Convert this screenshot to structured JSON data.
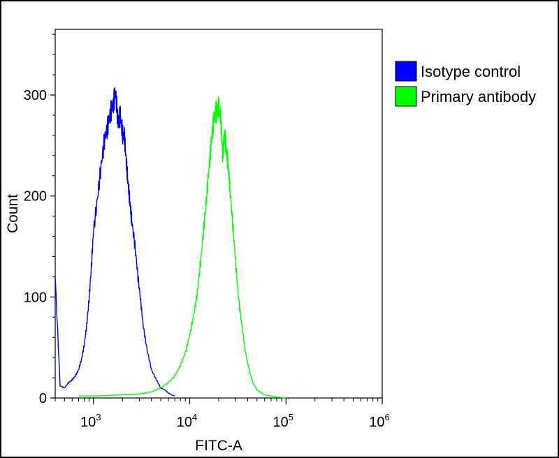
{
  "chart_data": {
    "type": "line",
    "title": "",
    "xlabel": "FITC-A",
    "ylabel": "Count",
    "x_scale": "log10",
    "xlim": [
      400,
      1000000
    ],
    "ylim": [
      0,
      365
    ],
    "x_ticks": [
      {
        "value": 1000,
        "base": "10",
        "exp": "3"
      },
      {
        "value": 10000,
        "base": "10",
        "exp": "4"
      },
      {
        "value": 100000,
        "base": "10",
        "exp": "5"
      },
      {
        "value": 1000000,
        "base": "10",
        "exp": "6"
      }
    ],
    "y_ticks": [
      {
        "value": 0,
        "label": "0"
      },
      {
        "value": 100,
        "label": "100"
      },
      {
        "value": 200,
        "label": "200"
      },
      {
        "value": 300,
        "label": "300"
      }
    ],
    "grid": false,
    "legend": "right",
    "series": [
      {
        "name": "Isotype control",
        "color": "#0000ff",
        "x": [
          400,
          450,
          500,
          550,
          600,
          650,
          700,
          750,
          800,
          850,
          900,
          950,
          1000,
          1100,
          1200,
          1300,
          1400,
          1500,
          1600,
          1700,
          1800,
          1900,
          2000,
          2100,
          2200,
          2300,
          2400,
          2500,
          2700,
          2900,
          3100,
          3300,
          3600,
          4000,
          4500,
          5000,
          5500,
          6000,
          6500,
          7000
        ],
        "y": [
          120,
          12,
          10,
          15,
          18,
          22,
          28,
          38,
          52,
          72,
          98,
          130,
          165,
          198,
          230,
          255,
          268,
          282,
          290,
          303,
          272,
          280,
          262,
          258,
          232,
          210,
          192,
          175,
          150,
          120,
          95,
          70,
          48,
          28,
          18,
          10,
          8,
          5,
          3,
          2
        ]
      },
      {
        "name": "Primary antibody",
        "color": "#00ff00",
        "x": [
          700,
          1000,
          2000,
          3000,
          4000,
          5000,
          6000,
          7000,
          8000,
          9000,
          10000,
          11000,
          12000,
          13000,
          14000,
          15000,
          16000,
          17000,
          18000,
          19000,
          20000,
          21000,
          22000,
          23000,
          24000,
          25000,
          26000,
          28000,
          30000,
          32000,
          35000,
          38000,
          42000,
          46000,
          50000,
          60000,
          70000,
          80000,
          100000
        ],
        "y": [
          2,
          2,
          3,
          4,
          6,
          10,
          15,
          22,
          32,
          45,
          62,
          82,
          105,
          135,
          168,
          200,
          232,
          260,
          278,
          284,
          288,
          278,
          240,
          262,
          245,
          232,
          210,
          172,
          135,
          100,
          70,
          45,
          25,
          14,
          8,
          3,
          2,
          1,
          0
        ]
      }
    ]
  }
}
